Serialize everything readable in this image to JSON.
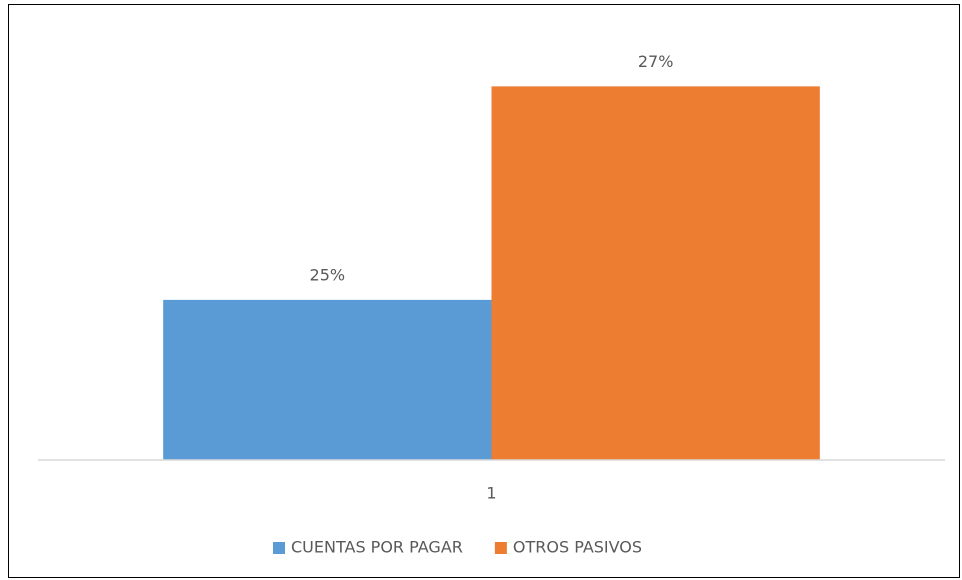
{
  "chart_data": {
    "type": "bar",
    "categories": [
      "1"
    ],
    "series": [
      {
        "name": "CUENTAS POR PAGAR",
        "color": "#5b9bd5",
        "values": [
          25
        ],
        "value_labels": [
          "25%"
        ]
      },
      {
        "name": "OTROS PASIVOS",
        "color": "#ed7d31",
        "values": [
          27
        ],
        "value_labels": [
          "27%"
        ]
      }
    ],
    "ylim": [
      23.5,
      27.5
    ],
    "legend": "bottom"
  }
}
